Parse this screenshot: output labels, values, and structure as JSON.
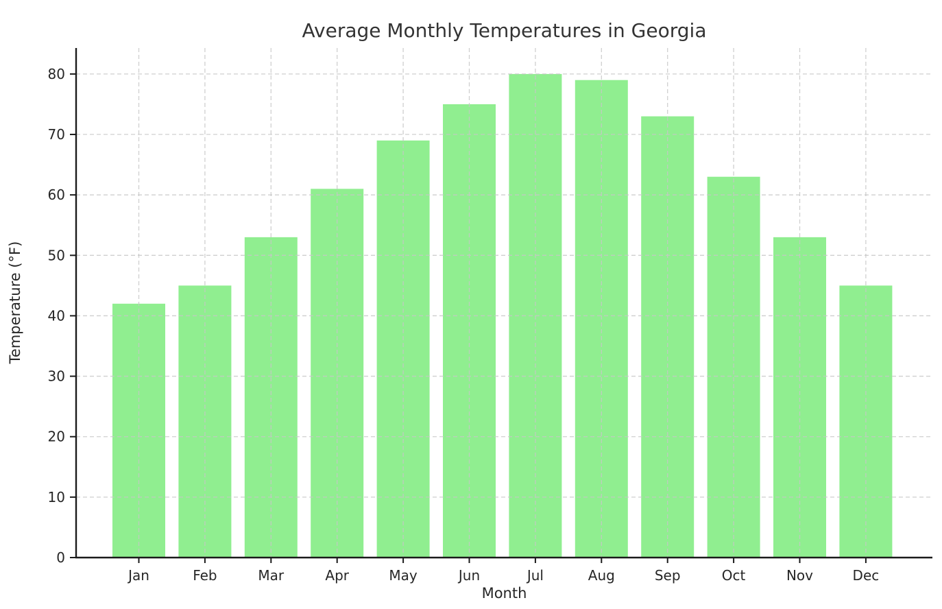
{
  "chart_data": {
    "type": "bar",
    "title": "Average Monthly Temperatures in Georgia",
    "xlabel": "Month",
    "ylabel": "Temperature (°F)",
    "categories": [
      "Jan",
      "Feb",
      "Mar",
      "Apr",
      "May",
      "Jun",
      "Jul",
      "Aug",
      "Sep",
      "Oct",
      "Nov",
      "Dec"
    ],
    "values": [
      42,
      45,
      53,
      61,
      69,
      75,
      80,
      79,
      73,
      63,
      53,
      45
    ],
    "yticks": [
      0,
      10,
      20,
      30,
      40,
      50,
      60,
      70,
      80
    ],
    "ylim": [
      0,
      84.3
    ],
    "grid": "dashed, horizontal and vertical, drawn over bars",
    "legend": "none",
    "colors": {
      "bar_fill": "#90EE90",
      "grid_line": "#c7c7c7",
      "axis_spine": "#1a1a1a",
      "tick_text": "#262626",
      "title_text": "#333333",
      "background": "#ffffff"
    }
  }
}
